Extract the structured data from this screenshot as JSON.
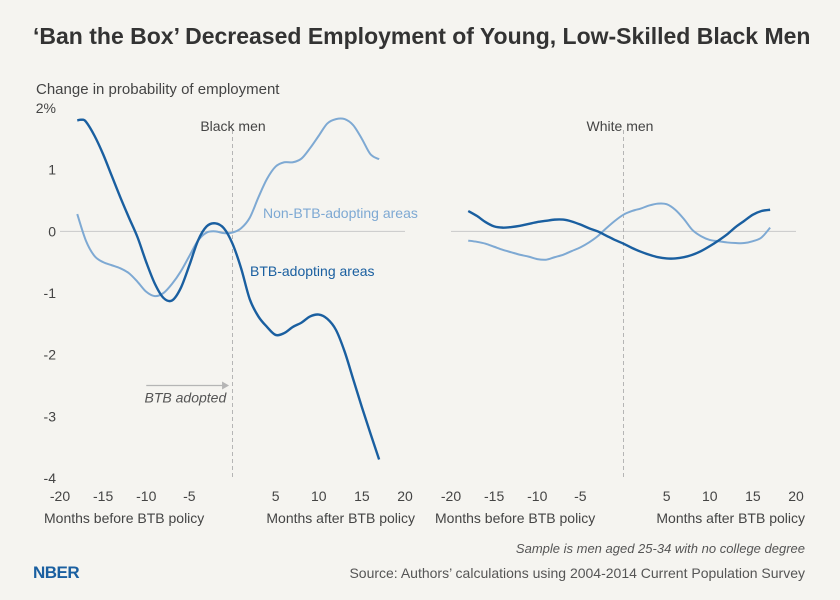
{
  "title": "‘Ban the Box’ Decreased Employment of Young, Low-Skilled Black Men",
  "ylabel": "Change in probability of employment",
  "note": "Sample is men aged 25-34 with no college degree",
  "source": "Source: Authors’ calculations using  2004-2014 Current Population Survey",
  "logo": "NBER",
  "colors": {
    "btb": "#1a5fa0",
    "non_btb": "#7ea9d3",
    "grid": "#c9c9c9",
    "text": "#444444"
  },
  "chart_data": [
    {
      "type": "line",
      "panel_label": "Black men",
      "x_label_before": "Months before BTB policy",
      "x_label_after": "Months after BTB policy",
      "xlim": [
        -20,
        20
      ],
      "ylim": [
        -4,
        2
      ],
      "x_ticks": [
        -20,
        -15,
        -10,
        -5,
        5,
        10,
        15,
        20
      ],
      "y_ticks": [
        {
          "v": 2,
          "label": "2%"
        },
        {
          "v": 1,
          "label": "1"
        },
        {
          "v": 0,
          "label": "0"
        },
        {
          "v": -1,
          "label": "-1"
        },
        {
          "v": -2,
          "label": "-2"
        },
        {
          "v": -3,
          "label": "-3"
        },
        {
          "v": -4,
          "label": "-4"
        }
      ],
      "annotation": "BTB adopted",
      "series": [
        {
          "name": "BTB-adopting areas",
          "key": "btb",
          "x": [
            -18,
            -17.5,
            -17,
            -16,
            -15,
            -14,
            -13,
            -12,
            -11,
            -10,
            -9,
            -8,
            -7,
            -6,
            -5,
            -4,
            -3,
            -2,
            -1,
            0,
            1,
            2,
            3,
            4,
            5,
            6,
            7,
            8,
            9,
            10,
            11,
            12,
            13,
            14,
            15,
            16,
            17
          ],
          "values": [
            1.8,
            1.81,
            1.78,
            1.55,
            1.25,
            0.9,
            0.55,
            0.22,
            -0.1,
            -0.5,
            -0.85,
            -1.08,
            -1.12,
            -0.92,
            -0.55,
            -0.15,
            0.08,
            0.13,
            0.05,
            -0.2,
            -0.6,
            -1.1,
            -1.38,
            -1.55,
            -1.68,
            -1.65,
            -1.55,
            -1.48,
            -1.38,
            -1.35,
            -1.42,
            -1.6,
            -1.95,
            -2.4,
            -2.85,
            -3.28,
            -3.7
          ]
        },
        {
          "name": "Non-BTB-adopting areas",
          "key": "non_btb",
          "x": [
            -18,
            -17,
            -16,
            -15,
            -14,
            -13,
            -12,
            -11,
            -10,
            -9,
            -8,
            -7,
            -6,
            -5,
            -4,
            -3,
            -2,
            -1,
            0,
            1,
            2,
            3,
            4,
            5,
            6,
            7,
            8,
            9,
            10,
            11,
            12,
            13,
            14,
            15,
            16,
            17
          ],
          "values": [
            0.28,
            -0.15,
            -0.4,
            -0.5,
            -0.55,
            -0.6,
            -0.68,
            -0.82,
            -0.98,
            -1.05,
            -1.0,
            -0.85,
            -0.65,
            -0.4,
            -0.15,
            -0.02,
            0.0,
            -0.03,
            -0.02,
            0.05,
            0.22,
            0.55,
            0.85,
            1.05,
            1.12,
            1.12,
            1.18,
            1.35,
            1.55,
            1.75,
            1.82,
            1.82,
            1.72,
            1.5,
            1.25,
            1.17
          ]
        }
      ],
      "series_labels": [
        "Non-BTB-adopting areas",
        "BTB-adopting areas"
      ]
    },
    {
      "type": "line",
      "panel_label": "White men",
      "x_label_before": "Months before BTB policy",
      "x_label_after": "Months after BTB policy",
      "xlim": [
        -20,
        20
      ],
      "ylim": [
        -4,
        2
      ],
      "x_ticks": [
        -20,
        -15,
        -10,
        -5,
        5,
        10,
        15,
        20
      ],
      "series": [
        {
          "name": "BTB-adopting areas",
          "key": "btb",
          "x": [
            -18,
            -17,
            -16,
            -15,
            -14,
            -13,
            -12,
            -11,
            -10,
            -9,
            -8,
            -7,
            -6,
            -5,
            -4,
            -3,
            -2,
            -1,
            0,
            1,
            2,
            3,
            4,
            5,
            6,
            7,
            8,
            9,
            10,
            11,
            12,
            13,
            14,
            15,
            16,
            17
          ],
          "values": [
            0.33,
            0.25,
            0.15,
            0.08,
            0.06,
            0.07,
            0.09,
            0.12,
            0.15,
            0.17,
            0.19,
            0.19,
            0.16,
            0.11,
            0.05,
            0.0,
            -0.07,
            -0.14,
            -0.2,
            -0.27,
            -0.33,
            -0.38,
            -0.42,
            -0.44,
            -0.44,
            -0.42,
            -0.38,
            -0.32,
            -0.24,
            -0.15,
            -0.05,
            0.07,
            0.17,
            0.27,
            0.33,
            0.35
          ]
        },
        {
          "name": "Non-BTB-adopting areas",
          "key": "non_btb",
          "x": [
            -18,
            -17,
            -16,
            -15,
            -14,
            -13,
            -12,
            -11,
            -10,
            -9,
            -8,
            -7,
            -6,
            -5,
            -4,
            -3,
            -2,
            -1,
            0,
            1,
            2,
            3,
            4,
            5,
            6,
            7,
            8,
            9,
            10,
            11,
            12,
            13,
            14,
            15,
            16,
            17
          ],
          "values": [
            -0.15,
            -0.17,
            -0.2,
            -0.25,
            -0.3,
            -0.34,
            -0.38,
            -0.41,
            -0.45,
            -0.46,
            -0.42,
            -0.38,
            -0.32,
            -0.26,
            -0.18,
            -0.08,
            0.05,
            0.17,
            0.27,
            0.33,
            0.37,
            0.42,
            0.45,
            0.44,
            0.35,
            0.2,
            0.02,
            -0.08,
            -0.14,
            -0.16,
            -0.18,
            -0.19,
            -0.19,
            -0.16,
            -0.1,
            0.06
          ]
        }
      ]
    }
  ]
}
